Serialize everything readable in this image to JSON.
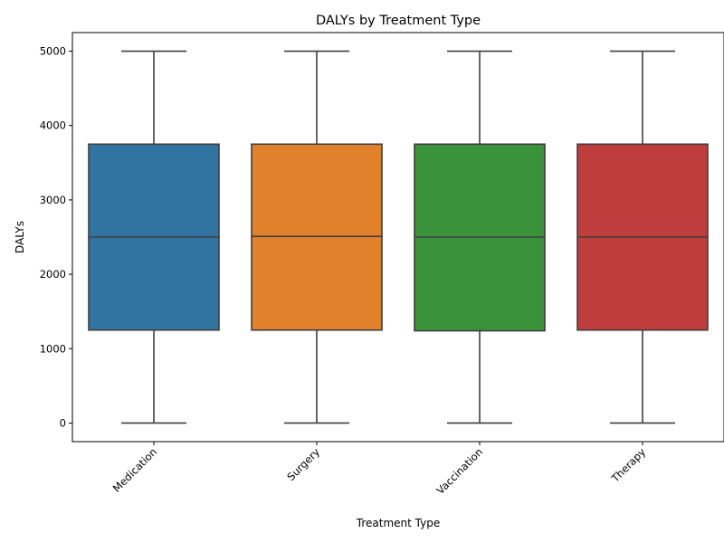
{
  "chart_data": {
    "type": "box",
    "title": "DALYs by Treatment Type",
    "xlabel": "Treatment Type",
    "ylabel": "DALYs",
    "categories": [
      "Medication",
      "Surgery",
      "Vaccination",
      "Therapy"
    ],
    "colors": [
      "#3274a1",
      "#e1812c",
      "#3a923a",
      "#c03d3e"
    ],
    "boxes": [
      {
        "category": "Medication",
        "min": 0,
        "q1": 1250,
        "median": 2500,
        "q3": 3750,
        "max": 5000
      },
      {
        "category": "Surgery",
        "min": 0,
        "q1": 1250,
        "median": 2510,
        "q3": 3750,
        "max": 5000
      },
      {
        "category": "Vaccination",
        "min": 0,
        "q1": 1240,
        "median": 2500,
        "q3": 3750,
        "max": 5000
      },
      {
        "category": "Therapy",
        "min": 0,
        "q1": 1250,
        "median": 2500,
        "q3": 3750,
        "max": 5000
      }
    ],
    "ylim": [
      -250,
      5250
    ],
    "yticks": [
      0,
      1000,
      2000,
      3000,
      4000,
      5000
    ],
    "grid": false,
    "legend": "none",
    "xtick_rotation": 45
  }
}
